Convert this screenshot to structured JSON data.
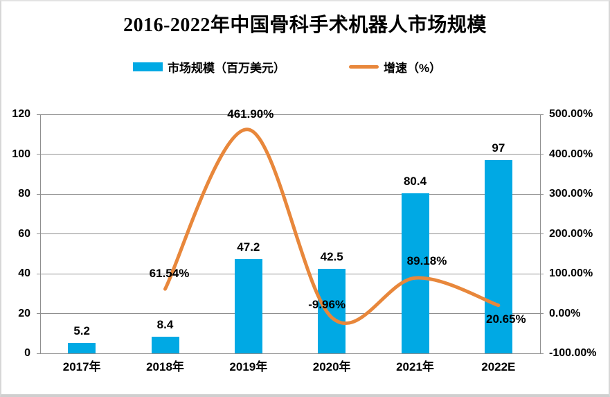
{
  "page": {
    "background": "#ffffff"
  },
  "chart_data": {
    "type": "combo",
    "title": "2016-2022年中国骨科手术机器人市场规模",
    "categories": [
      "2017年",
      "2018年",
      "2019年",
      "2020年",
      "2021年",
      "2022E"
    ],
    "series": [
      {
        "name": "市场规模（百万美元）",
        "type": "bar",
        "axis": "left",
        "color": "#00A9E4",
        "values": [
          5.2,
          8.4,
          47.2,
          42.5,
          80.4,
          97
        ],
        "data_labels": [
          "5.2",
          "8.4",
          "47.2",
          "42.5",
          "80.4",
          "97"
        ]
      },
      {
        "name": "增速（%）",
        "type": "line",
        "axis": "right",
        "color": "#E8873B",
        "values": [
          null,
          61.54,
          461.9,
          -9.96,
          89.18,
          20.65
        ],
        "data_labels": [
          null,
          "61.54%",
          "461.90%",
          "-9.96%",
          "89.18%",
          "20.65%"
        ]
      }
    ],
    "left_axis": {
      "min": 0,
      "max": 120,
      "tick_labels": [
        "120",
        "100",
        "80",
        "60",
        "40",
        "20",
        "0"
      ]
    },
    "right_axis": {
      "min": -100,
      "max": 500,
      "tick_labels": [
        "500.00%",
        "400.00%",
        "300.00%",
        "200.00%",
        "100.00%",
        "0.00%",
        "-100.00%"
      ]
    },
    "legend_position": "top",
    "grid": "horizontal",
    "xlabel": "",
    "ylabel": ""
  }
}
